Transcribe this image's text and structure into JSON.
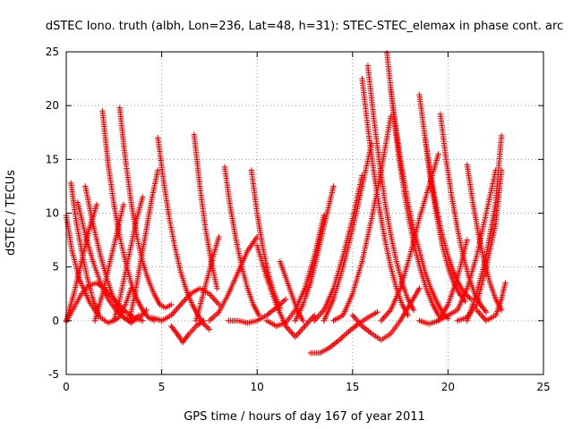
{
  "chart_data": {
    "type": "scatter",
    "title": "dSTEC Iono. truth (albh, Lon=236, Lat=48, h=31): STEC-STEC_elemax in phase cont. arc",
    "xlabel": "GPS time / hours of day 167 of year 2011",
    "ylabel": "dSTEC  / TECUs",
    "xlim": [
      0,
      25
    ],
    "ylim": [
      -5,
      25
    ],
    "xticks": [
      "0",
      "5",
      "10",
      "15",
      "20",
      "25"
    ],
    "yticks": [
      "-5",
      "0",
      "5",
      "10",
      "15",
      "20",
      "25"
    ],
    "grid": true,
    "marker": "+",
    "color": "#ff0000",
    "series": [
      {
        "x": [
          0.0,
          0.3,
          0.7,
          1.2,
          1.7,
          2.2,
          2.7,
          3.1,
          3.4
        ],
        "y": [
          9.8,
          6.5,
          3.8,
          1.8,
          0.4,
          -0.2,
          0.2,
          1.5,
          3.0
        ]
      },
      {
        "x": [
          0.0,
          0.4,
          0.8,
          1.2,
          1.6
        ],
        "y": [
          0.0,
          2.5,
          5.5,
          8.5,
          10.8
        ]
      },
      {
        "x": [
          0.25,
          0.5,
          0.8,
          1.1,
          1.4,
          1.7
        ],
        "y": [
          12.8,
          9.5,
          6.5,
          4.0,
          2.0,
          0.5
        ]
      },
      {
        "x": [
          0.0,
          0.4,
          0.8,
          1.2,
          1.6,
          2.0,
          2.5,
          3.0,
          3.5,
          4.0
        ],
        "y": [
          -0.1,
          1.2,
          2.5,
          3.3,
          3.5,
          3.0,
          2.0,
          1.0,
          0.3,
          0.0
        ]
      },
      {
        "x": [
          0.6,
          1.0,
          1.4,
          1.8,
          2.2,
          2.6,
          3.0,
          3.4,
          3.8,
          4.2
        ],
        "y": [
          11.0,
          8.0,
          5.5,
          3.5,
          2.0,
          1.0,
          0.3,
          0.0,
          0.2,
          1.0
        ]
      },
      {
        "x": [
          1.0,
          1.4,
          1.8,
          2.2,
          2.6,
          3.0,
          3.4,
          3.8
        ],
        "y": [
          12.5,
          9.0,
          6.0,
          3.5,
          1.5,
          0.3,
          -0.2,
          0.5
        ]
      },
      {
        "x": [
          1.9,
          2.2,
          2.5,
          2.8,
          3.1,
          3.4,
          3.7,
          4.0,
          4.3,
          4.6
        ],
        "y": [
          19.5,
          14.5,
          10.8,
          7.8,
          5.5,
          3.5,
          2.0,
          1.0,
          0.3,
          0.0
        ]
      },
      {
        "x": [
          2.8,
          3.1,
          3.4,
          3.7,
          4.0,
          4.3,
          4.6,
          4.9,
          5.2,
          5.5
        ],
        "y": [
          19.8,
          15.0,
          11.0,
          7.8,
          5.5,
          3.8,
          2.5,
          1.5,
          1.2,
          1.5
        ]
      },
      {
        "x": [
          1.5,
          1.9,
          2.3,
          2.7,
          3.0
        ],
        "y": [
          0.0,
          2.5,
          5.5,
          8.5,
          10.8
        ]
      },
      {
        "x": [
          2.5,
          2.8,
          3.1,
          3.4,
          3.7,
          4.0
        ],
        "y": [
          0.0,
          2.0,
          4.5,
          7.0,
          9.5,
          11.5
        ]
      },
      {
        "x": [
          3.3,
          3.6,
          3.9,
          4.2,
          4.5,
          4.8
        ],
        "y": [
          0.0,
          2.5,
          5.5,
          8.5,
          11.5,
          14.0
        ]
      },
      {
        "x": [
          4.8,
          5.1,
          5.4,
          5.7,
          6.0,
          6.3,
          6.6,
          6.9,
          7.2,
          7.5
        ],
        "y": [
          17.0,
          13.0,
          9.5,
          6.8,
          4.5,
          2.8,
          1.5,
          0.5,
          -0.3,
          -0.8
        ]
      },
      {
        "x": [
          4.5,
          5.0,
          5.5,
          6.0,
          6.5,
          7.0,
          7.5,
          8.0
        ],
        "y": [
          0.3,
          0.0,
          0.5,
          1.5,
          2.5,
          3.0,
          2.5,
          1.5
        ]
      },
      {
        "x": [
          6.7,
          7.0,
          7.3,
          7.6,
          7.9
        ],
        "y": [
          17.3,
          12.5,
          8.5,
          5.5,
          3.0
        ]
      },
      {
        "x": [
          5.5,
          5.8,
          6.1,
          6.4,
          6.8,
          7.2
        ],
        "y": [
          -0.5,
          -1.2,
          -2.0,
          -1.3,
          -0.5,
          0.0
        ]
      },
      {
        "x": [
          6.8,
          7.1,
          7.4,
          7.7,
          8.0
        ],
        "y": [
          0.0,
          2.0,
          4.0,
          6.0,
          7.8
        ]
      },
      {
        "x": [
          8.3,
          8.6,
          8.9,
          9.2,
          9.5,
          9.8,
          10.1
        ],
        "y": [
          14.3,
          10.5,
          7.5,
          5.0,
          3.0,
          1.5,
          0.5
        ]
      },
      {
        "x": [
          9.7,
          10.0,
          10.3,
          10.6,
          10.9,
          11.2
        ],
        "y": [
          14.0,
          10.0,
          6.8,
          4.3,
          2.5,
          1.2
        ]
      },
      {
        "x": [
          7.5,
          8.0,
          8.5,
          9.0,
          9.5,
          10.0
        ],
        "y": [
          0.0,
          0.8,
          2.5,
          4.5,
          6.5,
          7.8
        ]
      },
      {
        "x": [
          8.5,
          9.0,
          9.5,
          10.0,
          10.5,
          11.0,
          11.5
        ],
        "y": [
          0.0,
          0.0,
          -0.2,
          0.0,
          0.5,
          1.2,
          2.0
        ]
      },
      {
        "x": [
          10.0,
          10.5,
          11.0,
          11.5,
          12.0,
          12.5,
          13.0
        ],
        "y": [
          7.0,
          4.0,
          1.5,
          -0.5,
          -1.5,
          -0.5,
          0.5
        ]
      },
      {
        "x": [
          11.2,
          11.5,
          11.8,
          12.1,
          12.4
        ],
        "y": [
          5.5,
          4.0,
          2.5,
          1.0,
          0.0
        ]
      },
      {
        "x": [
          10.5,
          11.0,
          11.5,
          12.0,
          12.5,
          13.0,
          13.5
        ],
        "y": [
          0.0,
          -0.5,
          -0.2,
          1.0,
          3.0,
          6.0,
          9.8
        ]
      },
      {
        "x": [
          12.0,
          12.4,
          12.8,
          13.2,
          13.6,
          14.0
        ],
        "y": [
          0.0,
          1.5,
          3.5,
          6.5,
          9.5,
          12.5
        ]
      },
      {
        "x": [
          12.8,
          13.3,
          13.8,
          14.3,
          14.8,
          15.3,
          15.8,
          16.3
        ],
        "y": [
          -3.0,
          -3.0,
          -2.5,
          -1.8,
          -1.0,
          -0.3,
          0.3,
          0.8
        ]
      },
      {
        "x": [
          13.5,
          14.0,
          14.5,
          15.0,
          15.5,
          16.0
        ],
        "y": [
          0.0,
          2.0,
          5.0,
          8.5,
          12.5,
          16.5
        ]
      },
      {
        "x": [
          13.0,
          13.5,
          14.0,
          14.5,
          15.0,
          15.5
        ],
        "y": [
          0.0,
          1.0,
          3.0,
          6.0,
          9.5,
          13.5
        ]
      },
      {
        "x": [
          14.0,
          14.5,
          15.0,
          15.5,
          16.0,
          16.5,
          17.0
        ],
        "y": [
          0.0,
          0.5,
          2.5,
          5.5,
          9.5,
          14.0,
          19.0
        ]
      },
      {
        "x": [
          15.5,
          15.8,
          16.1,
          16.4,
          16.7,
          17.0,
          17.3,
          17.6,
          17.9
        ],
        "y": [
          22.5,
          18.0,
          14.0,
          10.5,
          7.5,
          5.0,
          3.0,
          1.5,
          0.5
        ]
      },
      {
        "x": [
          15.8,
          16.1,
          16.4,
          16.7,
          17.0,
          17.3,
          17.6,
          17.9,
          18.2
        ],
        "y": [
          23.7,
          19.0,
          14.8,
          11.0,
          8.0,
          5.5,
          3.5,
          2.0,
          1.0
        ]
      },
      {
        "x": [
          16.8,
          17.1,
          17.4,
          17.7,
          18.0,
          18.3,
          18.6,
          18.9,
          19.2,
          19.5
        ],
        "y": [
          24.9,
          20.0,
          15.5,
          12.0,
          9.0,
          6.5,
          4.5,
          2.8,
          1.5,
          0.5
        ]
      },
      {
        "x": [
          17.0,
          17.3,
          17.6,
          17.9,
          18.2,
          18.5,
          18.8,
          19.1,
          19.4,
          19.7,
          20.0
        ],
        "y": [
          21.5,
          17.5,
          14.0,
          11.0,
          8.5,
          6.5,
          4.5,
          3.0,
          1.8,
          0.8,
          0.2
        ]
      },
      {
        "x": [
          15.0,
          15.5,
          16.0,
          16.5,
          17.0,
          17.5,
          18.0,
          18.5
        ],
        "y": [
          0.5,
          -0.5,
          -1.2,
          -1.8,
          -1.2,
          0.0,
          1.5,
          3.0
        ]
      },
      {
        "x": [
          16.5,
          17.0,
          17.5,
          18.0,
          18.5,
          19.0,
          19.5
        ],
        "y": [
          0.0,
          1.0,
          3.0,
          6.0,
          9.5,
          12.5,
          15.5
        ]
      },
      {
        "x": [
          18.5,
          18.8,
          19.1,
          19.4,
          19.7,
          20.0,
          20.3,
          20.6,
          20.9,
          21.2
        ],
        "y": [
          21.0,
          17.0,
          13.5,
          10.5,
          8.0,
          6.0,
          4.5,
          3.3,
          2.5,
          2.0
        ]
      },
      {
        "x": [
          18.8,
          19.1,
          19.4,
          19.7,
          20.0,
          20.3,
          20.6,
          20.9
        ],
        "y": [
          17.0,
          13.0,
          9.8,
          7.0,
          5.0,
          3.5,
          2.5,
          1.8
        ]
      },
      {
        "x": [
          19.6,
          19.9,
          20.2,
          20.5,
          20.8,
          21.1,
          21.4,
          21.7,
          22.0
        ],
        "y": [
          19.2,
          15.0,
          11.5,
          8.5,
          6.0,
          4.0,
          2.5,
          1.5,
          0.8
        ]
      },
      {
        "x": [
          18.5,
          19.0,
          19.5,
          20.0,
          20.5,
          21.0
        ],
        "y": [
          0.0,
          -0.3,
          0.0,
          1.5,
          4.0,
          7.5
        ]
      },
      {
        "x": [
          19.5,
          20.0,
          20.5,
          21.0,
          21.5,
          22.0,
          22.5
        ],
        "y": [
          0.0,
          0.5,
          1.0,
          3.0,
          6.0,
          10.0,
          14.0
        ]
      },
      {
        "x": [
          21.0,
          21.3,
          21.6,
          21.9,
          22.2,
          22.5,
          22.8
        ],
        "y": [
          14.5,
          11.0,
          8.0,
          5.5,
          3.5,
          2.0,
          1.0
        ]
      },
      {
        "x": [
          21.0,
          21.5,
          22.0,
          22.5,
          22.8
        ],
        "y": [
          0.0,
          2.5,
          6.0,
          11.0,
          17.2
        ]
      },
      {
        "x": [
          21.5,
          22.0,
          22.5,
          22.8,
          23.0
        ],
        "y": [
          1.0,
          0.0,
          0.5,
          2.0,
          3.5
        ]
      },
      {
        "x": [
          20.5,
          21.0,
          21.5,
          22.0,
          22.5,
          22.8
        ],
        "y": [
          0.0,
          0.3,
          1.5,
          5.0,
          9.0,
          14.0
        ]
      }
    ]
  }
}
